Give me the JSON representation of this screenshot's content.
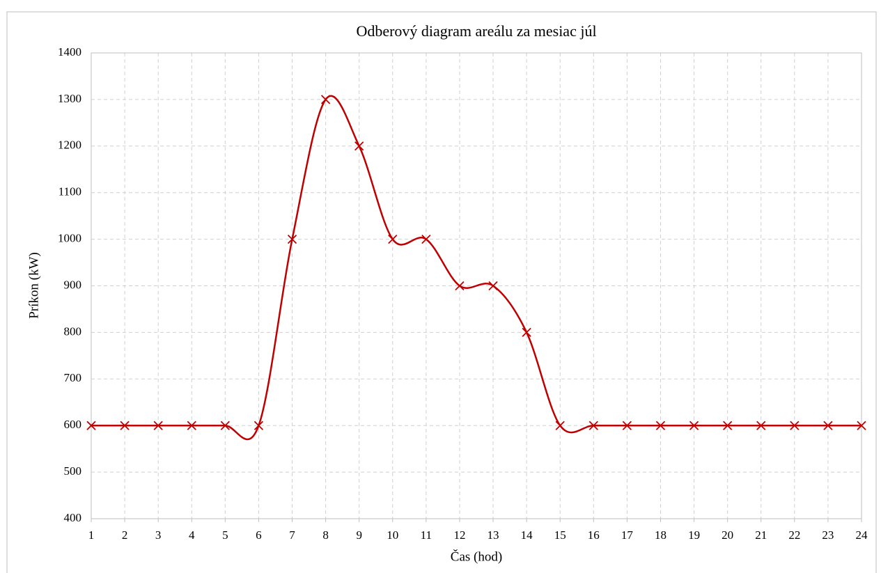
{
  "chart_data": {
    "type": "line",
    "title": "Odberový diagram areálu za mesiac júl",
    "x_label": "Čas (hod)",
    "y_label": "Príkon (kW)",
    "x": [
      1,
      2,
      3,
      4,
      5,
      6,
      7,
      8,
      9,
      10,
      11,
      12,
      13,
      14,
      15,
      16,
      17,
      18,
      19,
      20,
      21,
      22,
      23,
      24
    ],
    "series": [
      {
        "name": "Príkon",
        "color": "#c00000",
        "values": [
          600,
          600,
          600,
          600,
          600,
          600,
          1000,
          1300,
          1200,
          1000,
          1000,
          900,
          900,
          800,
          600,
          600,
          600,
          600,
          600,
          600,
          600,
          600,
          600,
          600
        ]
      }
    ],
    "xlim": [
      1,
      24
    ],
    "xticks": [
      1,
      2,
      3,
      4,
      5,
      6,
      7,
      8,
      9,
      10,
      11,
      12,
      13,
      14,
      15,
      16,
      17,
      18,
      19,
      20,
      21,
      22,
      23,
      24
    ],
    "ylim": [
      400,
      1400
    ],
    "yticks": [
      400,
      500,
      600,
      700,
      800,
      900,
      1000,
      1100,
      1200,
      1300,
      1400
    ],
    "grid": true,
    "smooth": true,
    "marker": "x"
  }
}
